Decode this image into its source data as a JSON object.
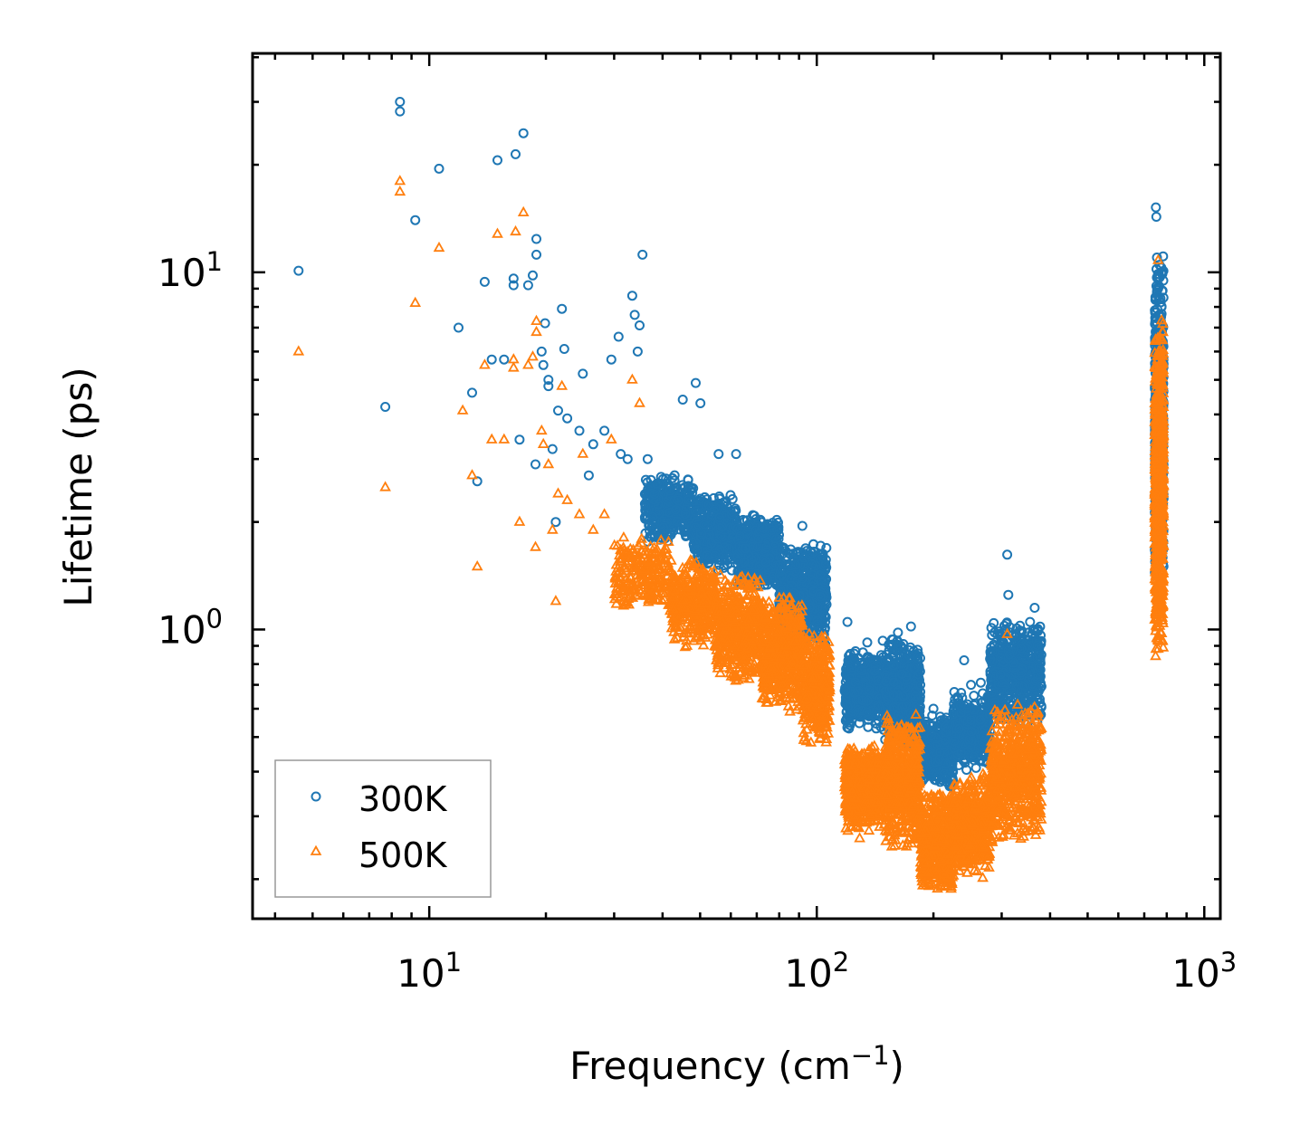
{
  "chart_data": {
    "type": "scatter",
    "title": "",
    "xlabel": "Frequency (cm",
    "xlabel_sup": "−1",
    "xlabel_end": ")",
    "ylabel": "Lifetime (ps)",
    "xscale": "log",
    "yscale": "log",
    "xlim": [
      3.5,
      1100
    ],
    "ylim": [
      0.155,
      41
    ],
    "x_ticks": [
      {
        "value": 10,
        "base": "10",
        "exp": "1"
      },
      {
        "value": 100,
        "base": "10",
        "exp": "2"
      },
      {
        "value": 1000,
        "base": "10",
        "exp": "3"
      }
    ],
    "y_ticks": [
      {
        "value": 1,
        "base": "10",
        "exp": "0"
      },
      {
        "value": 10,
        "base": "10",
        "exp": "1"
      }
    ],
    "legend_position": "lower-left",
    "series": [
      {
        "name": "300K",
        "marker": "circle",
        "color": "#1f77b4",
        "points": [
          [
            4.6,
            10.1
          ],
          [
            7.7,
            4.2
          ],
          [
            8.4,
            30
          ],
          [
            8.4,
            28.2
          ],
          [
            9.2,
            14
          ],
          [
            10.6,
            19.5
          ],
          [
            11.9,
            7
          ],
          [
            12.9,
            4.6
          ],
          [
            13.3,
            2.6
          ],
          [
            13.9,
            9.4
          ],
          [
            14.5,
            5.7
          ],
          [
            15,
            20.6
          ],
          [
            15.6,
            5.7
          ],
          [
            16.5,
            9.6
          ],
          [
            16.5,
            9.2
          ],
          [
            16.7,
            21.4
          ],
          [
            17.1,
            3.4
          ],
          [
            17.5,
            24.5
          ],
          [
            18,
            9.2
          ],
          [
            18.5,
            9.8
          ],
          [
            18.8,
            2.9
          ],
          [
            18.9,
            11.2
          ],
          [
            18.9,
            12.4
          ],
          [
            19.5,
            6
          ],
          [
            19.7,
            5.5
          ],
          [
            19.9,
            7.2
          ],
          [
            20.3,
            5
          ],
          [
            20.3,
            4.8
          ],
          [
            20.8,
            3.2
          ],
          [
            21.2,
            2
          ],
          [
            21.5,
            4.1
          ],
          [
            22,
            7.9
          ],
          [
            22.3,
            6.1
          ],
          [
            22.7,
            3.9
          ],
          [
            24.4,
            3.6
          ],
          [
            24.9,
            5.2
          ],
          [
            25.8,
            2.7
          ],
          [
            26.5,
            3.3
          ],
          [
            28.3,
            3.6
          ],
          [
            29.5,
            5.7
          ],
          [
            30.8,
            6.6
          ],
          [
            31.2,
            3.1
          ],
          [
            32.5,
            3
          ],
          [
            33.4,
            8.6
          ],
          [
            33.9,
            7.6
          ],
          [
            34.5,
            6
          ],
          [
            34.9,
            7.1
          ],
          [
            35.5,
            11.2
          ],
          [
            36.6,
            3
          ],
          [
            45.1,
            4.4
          ],
          [
            48.7,
            4.9
          ],
          [
            50.1,
            4.3
          ],
          [
            55.8,
            3.1
          ],
          [
            61.9,
            3.1
          ],
          [
            91.8,
            1.95
          ],
          [
            102,
            1.42
          ],
          [
            120,
            1.05
          ],
          [
            135,
            0.92
          ],
          [
            148,
            0.93
          ],
          [
            162,
            0.98
          ],
          [
            175,
            1.02
          ],
          [
            185,
            0.7
          ],
          [
            200,
            0.6
          ],
          [
            240,
            0.82
          ],
          [
            250,
            0.7
          ],
          [
            265,
            0.71
          ],
          [
            310,
            1.62
          ],
          [
            312,
            1.25
          ],
          [
            355,
            1.05
          ],
          [
            365,
            1.15
          ],
          [
            750,
            15.2
          ],
          [
            752,
            14.3
          ],
          [
            755,
            11
          ],
          [
            760,
            9
          ]
        ],
        "bands": [
          {
            "x": [
              36,
              48
            ],
            "y": [
              1.7,
              2.8
            ],
            "n": 320
          },
          {
            "x": [
              48,
              62
            ],
            "y": [
              1.45,
              2.4
            ],
            "n": 420
          },
          {
            "x": [
              62,
              80
            ],
            "y": [
              1.3,
              2.1
            ],
            "n": 560
          },
          {
            "x": [
              80,
              106
            ],
            "y": [
              0.88,
              1.75
            ],
            "n": 700
          },
          {
            "x": [
              118,
              150
            ],
            "y": [
              0.52,
              0.88
            ],
            "n": 520
          },
          {
            "x": [
              150,
              185
            ],
            "y": [
              0.46,
              0.95
            ],
            "n": 520
          },
          {
            "x": [
              185,
              225
            ],
            "y": [
              0.36,
              0.58
            ],
            "n": 380
          },
          {
            "x": [
              225,
              280
            ],
            "y": [
              0.4,
              0.68
            ],
            "n": 380
          },
          {
            "x": [
              280,
              380
            ],
            "y": [
              0.52,
              1.1
            ],
            "n": 520
          },
          {
            "x": [
              745,
              785
            ],
            "y": [
              1.3,
              11.5
            ],
            "n": 650
          }
        ]
      },
      {
        "name": "500K",
        "marker": "triangle",
        "color": "#ff7f0e",
        "points": [
          [
            4.6,
            6
          ],
          [
            7.7,
            2.5
          ],
          [
            8.4,
            18
          ],
          [
            8.4,
            16.8
          ],
          [
            9.2,
            8.2
          ],
          [
            10.6,
            11.7
          ],
          [
            12.2,
            4.1
          ],
          [
            12.9,
            2.7
          ],
          [
            13.3,
            1.5
          ],
          [
            13.9,
            5.5
          ],
          [
            14.5,
            3.4
          ],
          [
            15,
            12.8
          ],
          [
            15.6,
            3.4
          ],
          [
            16.5,
            5.7
          ],
          [
            16.5,
            5.4
          ],
          [
            16.7,
            13
          ],
          [
            17.1,
            2
          ],
          [
            17.5,
            14.7
          ],
          [
            18,
            5.5
          ],
          [
            18.5,
            5.8
          ],
          [
            18.8,
            1.7
          ],
          [
            18.9,
            6.8
          ],
          [
            18.9,
            7.3
          ],
          [
            19.5,
            3.6
          ],
          [
            19.7,
            3.3
          ],
          [
            20.3,
            2.9
          ],
          [
            20.8,
            1.9
          ],
          [
            21.2,
            1.2
          ],
          [
            21.5,
            2.4
          ],
          [
            22,
            4.8
          ],
          [
            22.7,
            2.3
          ],
          [
            24.4,
            2.1
          ],
          [
            24.9,
            3.1
          ],
          [
            26.5,
            1.9
          ],
          [
            28.3,
            2.1
          ],
          [
            29.5,
            3.4
          ],
          [
            30.8,
            1.35
          ],
          [
            33.4,
            5
          ],
          [
            34.9,
            4.3
          ],
          [
            129,
            0.26
          ],
          [
            310,
            0.97
          ],
          [
            760,
            10.8
          ]
        ],
        "bands": [
          {
            "x": [
              30,
              42
            ],
            "y": [
              1.1,
              1.85
            ],
            "n": 240
          },
          {
            "x": [
              42,
              55
            ],
            "y": [
              0.88,
              1.6
            ],
            "n": 360
          },
          {
            "x": [
              55,
              72
            ],
            "y": [
              0.7,
              1.45
            ],
            "n": 480
          },
          {
            "x": [
              72,
              92
            ],
            "y": [
              0.58,
              1.25
            ],
            "n": 560
          },
          {
            "x": [
              92,
              108
            ],
            "y": [
              0.47,
              0.98
            ],
            "n": 380
          },
          {
            "x": [
              118,
              150
            ],
            "y": [
              0.27,
              0.48
            ],
            "n": 620
          },
          {
            "x": [
              150,
              185
            ],
            "y": [
              0.24,
              0.58
            ],
            "n": 620
          },
          {
            "x": [
              185,
              225
            ],
            "y": [
              0.185,
              0.35
            ],
            "n": 520
          },
          {
            "x": [
              225,
              280
            ],
            "y": [
              0.2,
              0.4
            ],
            "n": 480
          },
          {
            "x": [
              280,
              380
            ],
            "y": [
              0.25,
              0.62
            ],
            "n": 620
          },
          {
            "x": [
              745,
              785
            ],
            "y": [
              0.82,
              7.5
            ],
            "n": 750
          }
        ]
      }
    ]
  }
}
